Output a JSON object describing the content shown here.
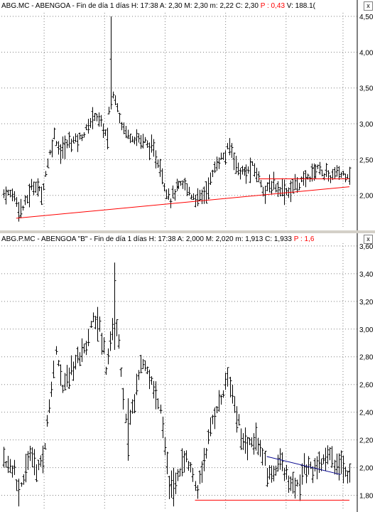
{
  "panels": [
    {
      "header": {
        "symbol": "ABG.MC",
        "name": "ABENGOA",
        "period": "Fin de día 1 días",
        "h_label": "H:",
        "h_value": "17:38",
        "a_label": "A:",
        "a_value": "2,30",
        "max_label": "M:",
        "max_value": "2,30",
        "min_label": "m:",
        "min_value": "2,22",
        "c_label": "C:",
        "c_value": "2,30",
        "p_label": "P :",
        "p_value": "0,43",
        "v_label": "V:",
        "v_value": "188.1("
      },
      "close_label": "x"
    },
    {
      "header": {
        "symbol": "ABG.P.MC",
        "name": "ABENGOA \"B\"",
        "period": "Fin de día 1 días",
        "h_label": "H:",
        "h_value": "17:38",
        "a_label": "A:",
        "a_value": "2,000",
        "max_label": "M:",
        "max_value": "2,020",
        "min_label": "m:",
        "min_value": "1,913",
        "c_label": "C:",
        "c_value": "1,933",
        "p_label": "P :",
        "p_value": "1,6"
      },
      "close_label": "x"
    }
  ],
  "colors": {
    "bars": "#000000",
    "trendline": "#ff0000",
    "blue_line": "#00008b",
    "grid": "#808080"
  },
  "chart_data": [
    {
      "type": "ohlc",
      "title": "ABG.MC - ABENGOA - Fin de día 1 días",
      "ylim": [
        1.55,
        4.55
      ],
      "yticks": [
        2.0,
        2.5,
        3.0,
        3.5,
        4.0,
        4.5
      ],
      "ytick_labels": [
        "2,00",
        "2,50",
        "3,00",
        "3,50",
        "4,00",
        "4,50"
      ],
      "grid": true,
      "n_bars": 165,
      "anchors": [
        {
          "i": 0,
          "v": 2.03
        },
        {
          "i": 5,
          "v": 2.0
        },
        {
          "i": 8,
          "v": 1.78
        },
        {
          "i": 11,
          "v": 1.95
        },
        {
          "i": 13,
          "v": 2.1
        },
        {
          "i": 15,
          "v": 2.15
        },
        {
          "i": 18,
          "v": 2.02
        },
        {
          "i": 21,
          "v": 2.45
        },
        {
          "i": 24,
          "v": 2.85
        },
        {
          "i": 27,
          "v": 2.6
        },
        {
          "i": 31,
          "v": 2.75
        },
        {
          "i": 36,
          "v": 2.8
        },
        {
          "i": 40,
          "v": 2.95
        },
        {
          "i": 43,
          "v": 3.15
        },
        {
          "i": 46,
          "v": 3.0
        },
        {
          "i": 49,
          "v": 2.8
        },
        {
          "i": 50,
          "v": 3.15
        },
        {
          "i": 51,
          "v": 4.1
        },
        {
          "i": 52,
          "v": 3.4
        },
        {
          "i": 54,
          "v": 3.25
        },
        {
          "i": 56,
          "v": 3.0
        },
        {
          "i": 59,
          "v": 2.85
        },
        {
          "i": 63,
          "v": 2.8
        },
        {
          "i": 67,
          "v": 2.75
        },
        {
          "i": 71,
          "v": 2.6
        },
        {
          "i": 74,
          "v": 2.4
        },
        {
          "i": 76,
          "v": 2.15
        },
        {
          "i": 79,
          "v": 1.95
        },
        {
          "i": 82,
          "v": 2.1
        },
        {
          "i": 86,
          "v": 2.15
        },
        {
          "i": 89,
          "v": 2.0
        },
        {
          "i": 92,
          "v": 1.95
        },
        {
          "i": 96,
          "v": 2.05
        },
        {
          "i": 99,
          "v": 2.3
        },
        {
          "i": 102,
          "v": 2.5
        },
        {
          "i": 105,
          "v": 2.55
        },
        {
          "i": 107,
          "v": 2.7
        },
        {
          "i": 109,
          "v": 2.55
        },
        {
          "i": 111,
          "v": 2.35
        },
        {
          "i": 115,
          "v": 2.3
        },
        {
          "i": 118,
          "v": 2.4
        },
        {
          "i": 121,
          "v": 2.25
        },
        {
          "i": 124,
          "v": 2.05
        },
        {
          "i": 127,
          "v": 2.15
        },
        {
          "i": 131,
          "v": 2.1
        },
        {
          "i": 135,
          "v": 2.05
        },
        {
          "i": 138,
          "v": 2.15
        },
        {
          "i": 142,
          "v": 2.2
        },
        {
          "i": 146,
          "v": 2.3
        },
        {
          "i": 149,
          "v": 2.4
        },
        {
          "i": 152,
          "v": 2.3
        },
        {
          "i": 155,
          "v": 2.25
        },
        {
          "i": 157,
          "v": 2.3
        }
      ],
      "spikes": [
        {
          "i": 51,
          "high": 4.5,
          "low": 3.2
        },
        {
          "i": 8,
          "high": 1.95,
          "low": 1.68
        }
      ],
      "lines": [
        {
          "color": "trendline",
          "from": [
            6,
            1.68
          ],
          "to": [
            164,
            2.12
          ]
        },
        {
          "color": "trendline",
          "from": [
            121,
            2.23
          ],
          "to": [
            164,
            2.23
          ]
        }
      ]
    },
    {
      "type": "ohlc",
      "title": "ABG.P.MC - ABENGOA \"B\" - Fin de día 1 días",
      "ylim": [
        1.7,
        3.62
      ],
      "yticks": [
        1.8,
        2.0,
        2.2,
        2.4,
        2.6,
        2.8,
        3.0,
        3.2,
        3.4,
        3.6
      ],
      "ytick_labels": [
        "1,80",
        "2,00",
        "2,20",
        "2,40",
        "2,60",
        "2,80",
        "3,00",
        "3,20",
        "3,40",
        "3,60"
      ],
      "grid": true,
      "n_bars": 160,
      "anchors": [
        {
          "i": 0,
          "v": 2.05
        },
        {
          "i": 5,
          "v": 1.98
        },
        {
          "i": 7,
          "v": 1.8
        },
        {
          "i": 10,
          "v": 2.0
        },
        {
          "i": 12,
          "v": 2.1
        },
        {
          "i": 15,
          "v": 2.0
        },
        {
          "i": 18,
          "v": 2.05
        },
        {
          "i": 21,
          "v": 2.45
        },
        {
          "i": 24,
          "v": 2.85
        },
        {
          "i": 27,
          "v": 2.55
        },
        {
          "i": 31,
          "v": 2.7
        },
        {
          "i": 35,
          "v": 2.8
        },
        {
          "i": 38,
          "v": 2.85
        },
        {
          "i": 41,
          "v": 3.1
        },
        {
          "i": 44,
          "v": 3.0
        },
        {
          "i": 46,
          "v": 2.9
        },
        {
          "i": 47,
          "v": 2.7
        },
        {
          "i": 49,
          "v": 2.9
        },
        {
          "i": 51,
          "v": 3.15
        },
        {
          "i": 53,
          "v": 2.9
        },
        {
          "i": 55,
          "v": 2.45
        },
        {
          "i": 57,
          "v": 2.3
        },
        {
          "i": 60,
          "v": 2.5
        },
        {
          "i": 63,
          "v": 2.75
        },
        {
          "i": 66,
          "v": 2.7
        },
        {
          "i": 69,
          "v": 2.55
        },
        {
          "i": 72,
          "v": 2.4
        },
        {
          "i": 74,
          "v": 2.15
        },
        {
          "i": 76,
          "v": 1.9
        },
        {
          "i": 78,
          "v": 1.85
        },
        {
          "i": 81,
          "v": 2.0
        },
        {
          "i": 84,
          "v": 2.05
        },
        {
          "i": 87,
          "v": 1.95
        },
        {
          "i": 89,
          "v": 1.85
        },
        {
          "i": 92,
          "v": 2.05
        },
        {
          "i": 95,
          "v": 2.3
        },
        {
          "i": 98,
          "v": 2.45
        },
        {
          "i": 101,
          "v": 2.55
        },
        {
          "i": 103,
          "v": 2.65
        },
        {
          "i": 106,
          "v": 2.45
        },
        {
          "i": 109,
          "v": 2.25
        },
        {
          "i": 112,
          "v": 2.15
        },
        {
          "i": 116,
          "v": 2.2
        },
        {
          "i": 119,
          "v": 2.1
        },
        {
          "i": 121,
          "v": 1.95
        },
        {
          "i": 124,
          "v": 1.95
        },
        {
          "i": 127,
          "v": 2.05
        },
        {
          "i": 130,
          "v": 1.95
        },
        {
          "i": 133,
          "v": 1.85
        },
        {
          "i": 136,
          "v": 1.9
        },
        {
          "i": 138,
          "v": 2.0
        },
        {
          "i": 141,
          "v": 2.0
        },
        {
          "i": 145,
          "v": 2.0
        },
        {
          "i": 149,
          "v": 2.1
        },
        {
          "i": 152,
          "v": 2.05
        },
        {
          "i": 155,
          "v": 2.0
        },
        {
          "i": 157,
          "v": 1.95
        }
      ],
      "spikes": [
        {
          "i": 51,
          "high": 3.48,
          "low": 2.85
        },
        {
          "i": 57,
          "high": 2.5,
          "low": 2.05
        },
        {
          "i": 78,
          "high": 2.0,
          "low": 1.72
        },
        {
          "i": 7,
          "high": 1.92,
          "low": 1.72
        },
        {
          "i": 136,
          "high": 1.95,
          "low": 1.76
        }
      ],
      "lines": [
        {
          "color": "trendline",
          "from": [
            88,
            1.765
          ],
          "to": [
            159,
            1.765
          ]
        },
        {
          "color": "blue_line",
          "from": [
            121,
            2.08
          ],
          "to": [
            155,
            1.95
          ]
        }
      ]
    }
  ]
}
